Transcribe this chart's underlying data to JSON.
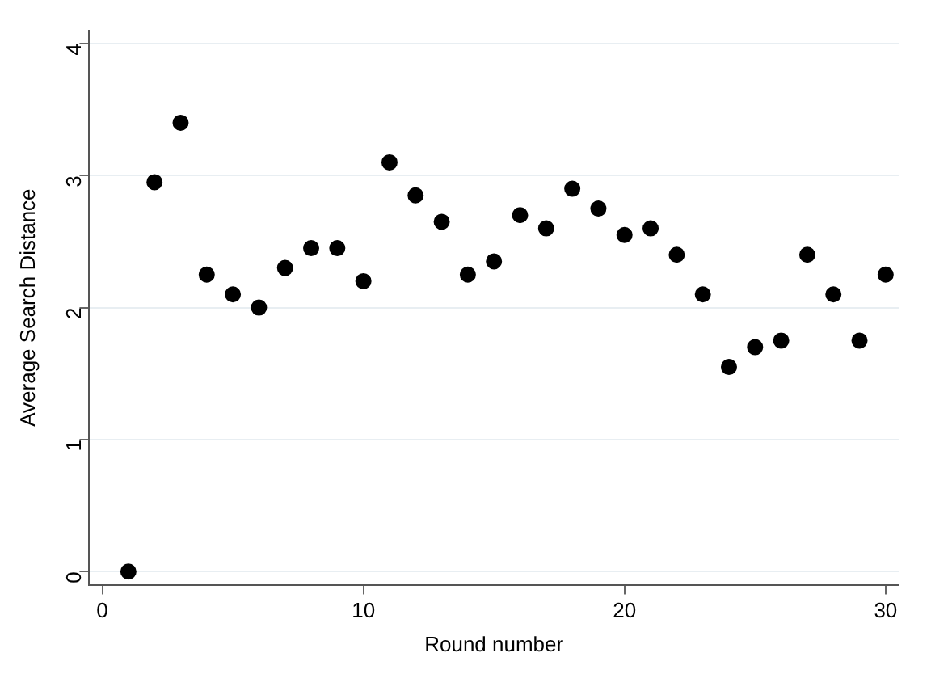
{
  "chart_data": {
    "type": "scatter",
    "xlabel": "Round number",
    "ylabel": "Average Search Distance",
    "x": [
      1,
      2,
      3,
      4,
      5,
      6,
      7,
      8,
      9,
      10,
      11,
      12,
      13,
      14,
      15,
      16,
      17,
      18,
      19,
      20,
      21,
      22,
      23,
      24,
      25,
      26,
      27,
      28,
      29,
      30
    ],
    "series": [
      {
        "color": "#000000",
        "values": [
          0,
          2.95,
          3.4,
          2.25,
          2.1,
          2.0,
          2.3,
          2.45,
          2.45,
          2.2,
          3.1,
          2.85,
          2.65,
          2.25,
          2.35,
          2.7,
          2.6,
          2.9,
          2.75,
          2.55,
          2.6,
          2.4,
          2.1,
          1.55,
          1.7,
          1.75,
          2.4,
          2.1,
          1.75,
          2.25
        ]
      }
    ],
    "xlim": [
      -0.5,
      30.5
    ],
    "xticks": [
      0,
      10,
      20,
      30
    ],
    "ylim": [
      -0.1,
      4.1
    ],
    "yticks": [
      0,
      1,
      2,
      3,
      4
    ],
    "grid": "y",
    "legend": false,
    "marker": "circle"
  }
}
